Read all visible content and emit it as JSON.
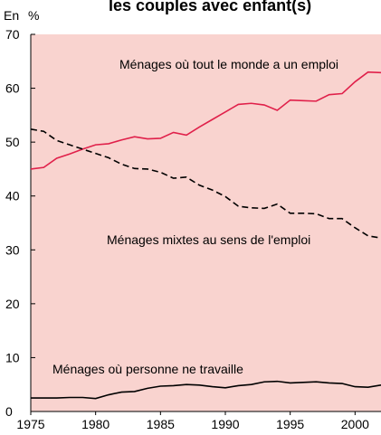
{
  "chart_data": {
    "type": "line",
    "title": "les couples avec enfant(s)",
    "ylabel": "En %",
    "x": [
      1975,
      1976,
      1977,
      1978,
      1979,
      1980,
      1981,
      1982,
      1983,
      1984,
      1985,
      1986,
      1987,
      1988,
      1989,
      1990,
      1991,
      1992,
      1993,
      1994,
      1995,
      1996,
      1997,
      1998,
      1999,
      2000,
      2001,
      2002
    ],
    "series": [
      {
        "name": "Ménages où tout le monde a un emploi",
        "color": "#e0204a",
        "dash": false,
        "values": [
          45,
          45.3,
          47,
          47.8,
          48.7,
          49.5,
          49.7,
          50.4,
          51,
          50.6,
          50.7,
          51.8,
          51.3,
          52.8,
          54.2,
          55.6,
          57,
          57.2,
          56.9,
          55.9,
          57.8,
          57.7,
          57.6,
          58.8,
          59,
          61.2,
          63,
          62.9
        ]
      },
      {
        "name": "Ménages mixtes au sens de l'emploi",
        "color": "#000000",
        "dash": true,
        "values": [
          52.4,
          52,
          50.3,
          49.5,
          48.7,
          47.9,
          47.1,
          45.9,
          45.1,
          45,
          44.4,
          43.3,
          43.5,
          42,
          41.1,
          39.9,
          38.1,
          37.8,
          37.7,
          38.5,
          36.8,
          36.8,
          36.7,
          35.8,
          35.8,
          34.1,
          32.6,
          32.2
        ]
      },
      {
        "name": "Ménages où personne ne travaille",
        "color": "#000000",
        "dash": false,
        "values": [
          2.5,
          2.5,
          2.5,
          2.6,
          2.6,
          2.4,
          3.1,
          3.6,
          3.7,
          4.3,
          4.7,
          4.8,
          5,
          4.9,
          4.6,
          4.4,
          4.8,
          5,
          5.5,
          5.6,
          5.3,
          5.4,
          5.5,
          5.3,
          5.2,
          4.6,
          4.5,
          4.9
        ]
      }
    ],
    "xlim": [
      1975,
      2002
    ],
    "xticks": [
      1975,
      1980,
      1985,
      1990,
      1995,
      2000
    ],
    "ylim": [
      0,
      70
    ],
    "yticks": [
      0,
      10,
      20,
      30,
      40,
      50,
      60,
      70
    ],
    "background": "#f9d3cf"
  }
}
